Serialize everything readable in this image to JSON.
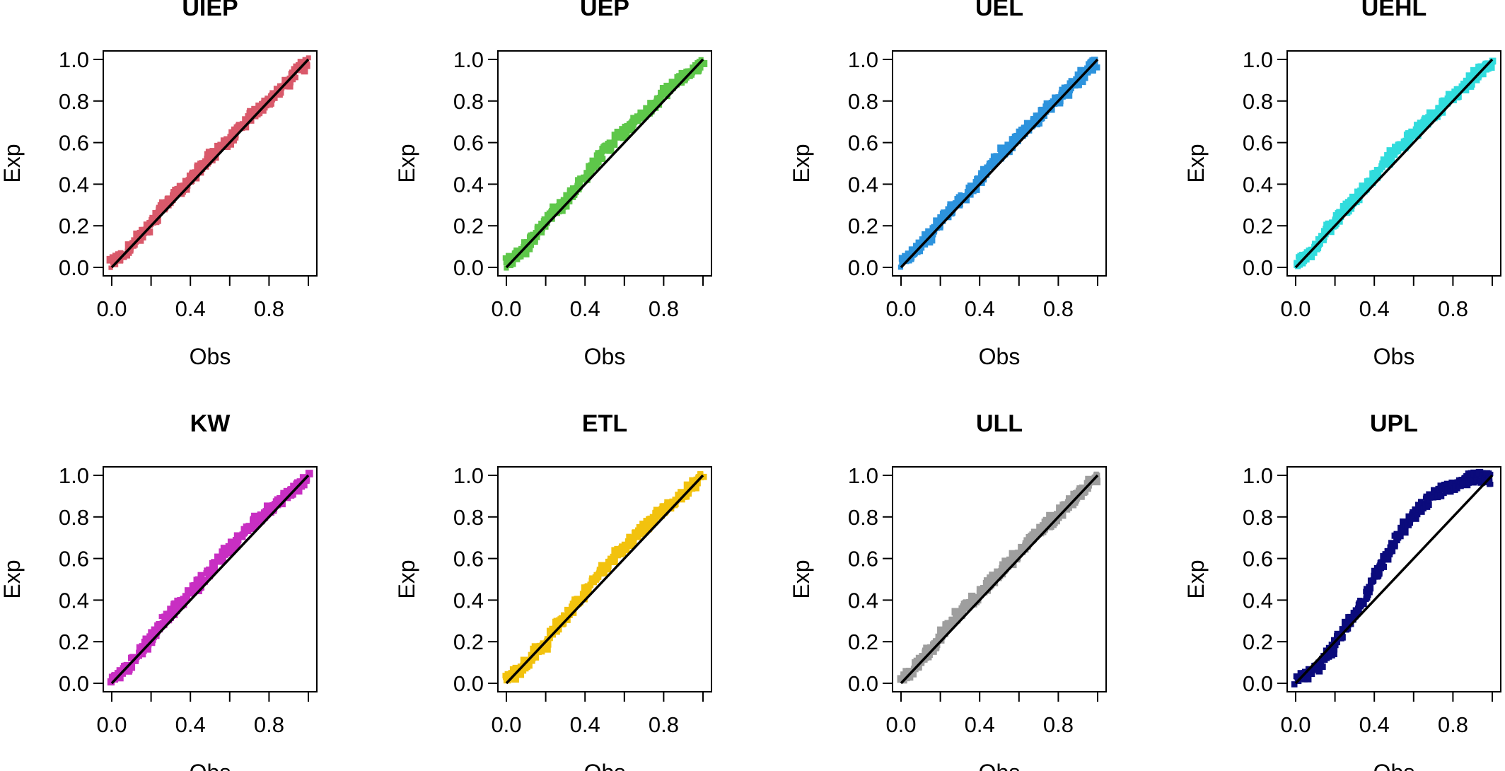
{
  "figure": {
    "panels": [
      {
        "title": "UIEP",
        "color": "#d9596a",
        "deviation": "near"
      },
      {
        "title": "UEP",
        "color": "#5ec74a",
        "deviation": "near"
      },
      {
        "title": "UEL",
        "color": "#2d93dd",
        "deviation": "near"
      },
      {
        "title": "UEHL",
        "color": "#31dcdd",
        "deviation": "near"
      },
      {
        "title": "KW",
        "color": "#c82fc2",
        "deviation": "near"
      },
      {
        "title": "ETL",
        "color": "#f2c20e",
        "deviation": "near"
      },
      {
        "title": "ULL",
        "color": "#9e9e9e",
        "deviation": "near"
      },
      {
        "title": "UPL",
        "color": "#0b0b7c",
        "deviation": "s-curve above diagonal"
      }
    ]
  },
  "chart_data": {
    "type": "scatter",
    "layout": "2 rows x 4 panels",
    "xlabel": "Obs",
    "ylabel": "Exp",
    "xlim": [
      0,
      1
    ],
    "ylim": [
      0,
      1
    ],
    "xticks": [
      "0.0",
      "0.4",
      "0.8"
    ],
    "yticks": [
      "0.0",
      "0.2",
      "0.4",
      "0.6",
      "0.8",
      "1.0"
    ],
    "reference_line": {
      "from": [
        0,
        0
      ],
      "to": [
        1,
        1
      ],
      "color": "#000000"
    },
    "series": [
      {
        "panel": "UIEP",
        "points": [
          [
            0.0,
            0.02
          ],
          [
            0.05,
            0.06
          ],
          [
            0.1,
            0.1
          ],
          [
            0.15,
            0.16
          ],
          [
            0.2,
            0.21
          ],
          [
            0.25,
            0.28
          ],
          [
            0.3,
            0.33
          ],
          [
            0.35,
            0.37
          ],
          [
            0.4,
            0.42
          ],
          [
            0.45,
            0.48
          ],
          [
            0.5,
            0.53
          ],
          [
            0.55,
            0.57
          ],
          [
            0.6,
            0.62
          ],
          [
            0.65,
            0.67
          ],
          [
            0.7,
            0.72
          ],
          [
            0.75,
            0.76
          ],
          [
            0.8,
            0.8
          ],
          [
            0.85,
            0.85
          ],
          [
            0.9,
            0.9
          ],
          [
            0.95,
            0.95
          ],
          [
            1.0,
            0.99
          ]
        ]
      },
      {
        "panel": "UEP",
        "points": [
          [
            0.0,
            0.02
          ],
          [
            0.05,
            0.05
          ],
          [
            0.1,
            0.1
          ],
          [
            0.15,
            0.15
          ],
          [
            0.2,
            0.22
          ],
          [
            0.25,
            0.27
          ],
          [
            0.3,
            0.31
          ],
          [
            0.35,
            0.38
          ],
          [
            0.4,
            0.44
          ],
          [
            0.45,
            0.5
          ],
          [
            0.5,
            0.56
          ],
          [
            0.55,
            0.61
          ],
          [
            0.6,
            0.65
          ],
          [
            0.65,
            0.7
          ],
          [
            0.7,
            0.74
          ],
          [
            0.75,
            0.78
          ],
          [
            0.8,
            0.83
          ],
          [
            0.85,
            0.87
          ],
          [
            0.9,
            0.91
          ],
          [
            0.95,
            0.95
          ],
          [
            1.0,
            0.99
          ]
        ]
      },
      {
        "panel": "UEL",
        "points": [
          [
            0.0,
            0.02
          ],
          [
            0.05,
            0.06
          ],
          [
            0.1,
            0.11
          ],
          [
            0.15,
            0.16
          ],
          [
            0.2,
            0.22
          ],
          [
            0.25,
            0.28
          ],
          [
            0.3,
            0.32
          ],
          [
            0.35,
            0.37
          ],
          [
            0.4,
            0.42
          ],
          [
            0.45,
            0.49
          ],
          [
            0.5,
            0.54
          ],
          [
            0.55,
            0.58
          ],
          [
            0.6,
            0.63
          ],
          [
            0.65,
            0.68
          ],
          [
            0.7,
            0.72
          ],
          [
            0.75,
            0.77
          ],
          [
            0.8,
            0.81
          ],
          [
            0.85,
            0.86
          ],
          [
            0.9,
            0.9
          ],
          [
            0.95,
            0.95
          ],
          [
            1.0,
            0.99
          ]
        ]
      },
      {
        "panel": "UEHL",
        "points": [
          [
            0.0,
            0.02
          ],
          [
            0.05,
            0.05
          ],
          [
            0.1,
            0.1
          ],
          [
            0.15,
            0.16
          ],
          [
            0.2,
            0.22
          ],
          [
            0.25,
            0.28
          ],
          [
            0.3,
            0.32
          ],
          [
            0.35,
            0.38
          ],
          [
            0.4,
            0.44
          ],
          [
            0.45,
            0.5
          ],
          [
            0.5,
            0.55
          ],
          [
            0.55,
            0.6
          ],
          [
            0.6,
            0.64
          ],
          [
            0.65,
            0.69
          ],
          [
            0.7,
            0.73
          ],
          [
            0.75,
            0.78
          ],
          [
            0.8,
            0.82
          ],
          [
            0.85,
            0.86
          ],
          [
            0.9,
            0.91
          ],
          [
            0.95,
            0.95
          ],
          [
            1.0,
            0.99
          ]
        ]
      },
      {
        "panel": "KW",
        "points": [
          [
            0.0,
            0.02
          ],
          [
            0.05,
            0.05
          ],
          [
            0.1,
            0.1
          ],
          [
            0.15,
            0.16
          ],
          [
            0.2,
            0.22
          ],
          [
            0.25,
            0.29
          ],
          [
            0.3,
            0.34
          ],
          [
            0.35,
            0.39
          ],
          [
            0.4,
            0.43
          ],
          [
            0.45,
            0.49
          ],
          [
            0.5,
            0.54
          ],
          [
            0.55,
            0.6
          ],
          [
            0.6,
            0.65
          ],
          [
            0.65,
            0.7
          ],
          [
            0.7,
            0.75
          ],
          [
            0.75,
            0.79
          ],
          [
            0.8,
            0.83
          ],
          [
            0.85,
            0.87
          ],
          [
            0.9,
            0.91
          ],
          [
            0.95,
            0.95
          ],
          [
            1.0,
            0.99
          ]
        ]
      },
      {
        "panel": "ETL",
        "points": [
          [
            0.0,
            0.02
          ],
          [
            0.05,
            0.05
          ],
          [
            0.1,
            0.1
          ],
          [
            0.15,
            0.15
          ],
          [
            0.2,
            0.19
          ],
          [
            0.25,
            0.27
          ],
          [
            0.3,
            0.32
          ],
          [
            0.35,
            0.38
          ],
          [
            0.4,
            0.44
          ],
          [
            0.45,
            0.5
          ],
          [
            0.5,
            0.55
          ],
          [
            0.55,
            0.61
          ],
          [
            0.6,
            0.65
          ],
          [
            0.65,
            0.7
          ],
          [
            0.7,
            0.75
          ],
          [
            0.75,
            0.79
          ],
          [
            0.8,
            0.83
          ],
          [
            0.85,
            0.87
          ],
          [
            0.9,
            0.91
          ],
          [
            0.95,
            0.95
          ],
          [
            1.0,
            0.99
          ]
        ]
      },
      {
        "panel": "ULL",
        "points": [
          [
            0.0,
            0.02
          ],
          [
            0.05,
            0.05
          ],
          [
            0.1,
            0.11
          ],
          [
            0.15,
            0.16
          ],
          [
            0.2,
            0.22
          ],
          [
            0.25,
            0.3
          ],
          [
            0.3,
            0.34
          ],
          [
            0.35,
            0.38
          ],
          [
            0.4,
            0.43
          ],
          [
            0.45,
            0.48
          ],
          [
            0.5,
            0.53
          ],
          [
            0.55,
            0.58
          ],
          [
            0.6,
            0.63
          ],
          [
            0.65,
            0.68
          ],
          [
            0.7,
            0.73
          ],
          [
            0.75,
            0.77
          ],
          [
            0.8,
            0.81
          ],
          [
            0.85,
            0.86
          ],
          [
            0.9,
            0.9
          ],
          [
            0.95,
            0.95
          ],
          [
            1.0,
            0.99
          ]
        ]
      },
      {
        "panel": "UPL",
        "points": [
          [
            0.0,
            0.02
          ],
          [
            0.05,
            0.04
          ],
          [
            0.1,
            0.07
          ],
          [
            0.15,
            0.12
          ],
          [
            0.2,
            0.19
          ],
          [
            0.25,
            0.27
          ],
          [
            0.3,
            0.33
          ],
          [
            0.35,
            0.41
          ],
          [
            0.4,
            0.5
          ],
          [
            0.45,
            0.59
          ],
          [
            0.5,
            0.68
          ],
          [
            0.55,
            0.75
          ],
          [
            0.6,
            0.81
          ],
          [
            0.65,
            0.86
          ],
          [
            0.7,
            0.9
          ],
          [
            0.75,
            0.93
          ],
          [
            0.8,
            0.95
          ],
          [
            0.85,
            0.97
          ],
          [
            0.9,
            0.99
          ],
          [
            0.95,
            0.99
          ],
          [
            1.0,
            0.98
          ]
        ]
      }
    ]
  }
}
